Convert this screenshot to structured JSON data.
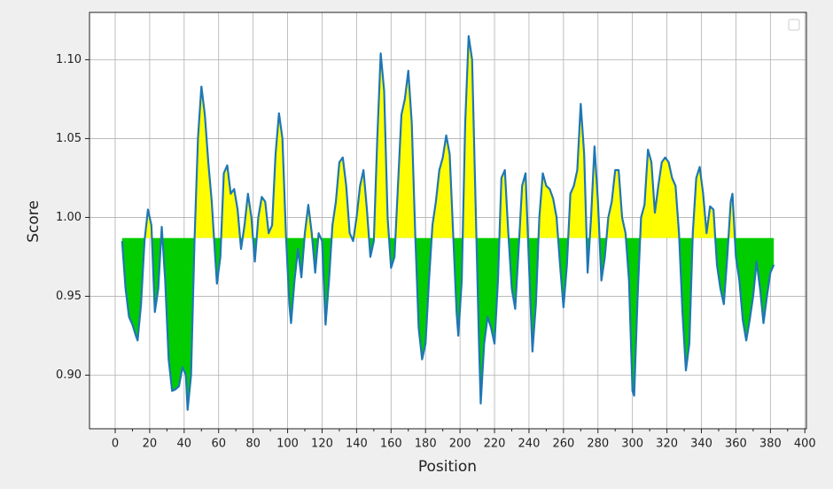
{
  "chart_data": {
    "type": "threshold-area",
    "xlabel": "Position",
    "ylabel": "Score",
    "x": [
      4,
      6,
      8,
      10,
      12,
      13,
      15,
      17,
      19,
      21,
      23,
      25,
      27,
      29,
      31,
      33,
      35,
      37,
      39,
      41,
      42,
      44,
      46,
      48,
      50,
      52,
      54,
      56,
      58,
      59,
      61,
      63,
      65,
      67,
      69,
      71,
      73,
      75,
      77,
      79,
      81,
      83,
      85,
      87,
      89,
      91,
      93,
      95,
      97,
      99,
      101,
      102,
      104,
      106,
      108,
      110,
      112,
      114,
      116,
      118,
      120,
      122,
      124,
      126,
      128,
      130,
      132,
      134,
      136,
      138,
      140,
      142,
      144,
      146,
      148,
      150,
      152,
      154,
      156,
      158,
      160,
      162,
      164,
      166,
      168,
      170,
      172,
      174,
      176,
      178,
      180,
      182,
      184,
      186,
      188,
      190,
      192,
      194,
      196,
      198,
      199,
      201,
      203,
      205,
      207,
      209,
      211,
      212,
      214,
      216,
      218,
      220,
      222,
      224,
      226,
      228,
      230,
      232,
      234,
      236,
      238,
      240,
      242,
      244,
      246,
      248,
      250,
      252,
      254,
      256,
      258,
      260,
      262,
      264,
      266,
      268,
      270,
      272,
      274,
      276,
      278,
      280,
      282,
      284,
      286,
      288,
      290,
      292,
      294,
      296,
      298,
      300,
      301,
      303,
      305,
      307,
      309,
      311,
      313,
      315,
      317,
      319,
      321,
      323,
      325,
      327,
      329,
      331,
      333,
      335,
      337,
      339,
      341,
      343,
      345,
      347,
      349,
      351,
      353,
      355,
      357,
      358,
      360,
      362,
      364,
      366,
      368,
      370,
      372,
      374,
      376,
      378,
      380,
      382
    ],
    "series": [
      {
        "color": "#1f77b4",
        "values": [
          0.985,
          0.955,
          0.937,
          0.932,
          0.925,
          0.922,
          0.945,
          0.985,
          1.005,
          0.995,
          0.94,
          0.955,
          0.994,
          0.96,
          0.91,
          0.89,
          0.891,
          0.893,
          0.905,
          0.9,
          0.878,
          0.9,
          0.985,
          1.05,
          1.083,
          1.065,
          1.035,
          1.01,
          0.975,
          0.958,
          0.975,
          1.028,
          1.033,
          1.015,
          1.018,
          1.005,
          0.98,
          0.995,
          1.015,
          1.0,
          0.972,
          1.0,
          1.013,
          1.01,
          0.99,
          0.995,
          1.04,
          1.066,
          1.05,
          0.99,
          0.945,
          0.933,
          0.96,
          0.98,
          0.962,
          0.99,
          1.008,
          0.99,
          0.965,
          0.99,
          0.985,
          0.932,
          0.96,
          0.995,
          1.01,
          1.035,
          1.038,
          1.02,
          0.99,
          0.985,
          1.0,
          1.02,
          1.03,
          1.005,
          0.975,
          0.985,
          1.05,
          1.104,
          1.08,
          1.0,
          0.968,
          0.975,
          1.02,
          1.065,
          1.075,
          1.093,
          1.06,
          0.99,
          0.93,
          0.91,
          0.92,
          0.96,
          0.995,
          1.01,
          1.03,
          1.038,
          1.052,
          1.04,
          0.99,
          0.94,
          0.925,
          0.96,
          1.06,
          1.115,
          1.1,
          1.01,
          0.92,
          0.882,
          0.92,
          0.937,
          0.93,
          0.92,
          0.96,
          1.025,
          1.03,
          0.99,
          0.955,
          0.942,
          0.98,
          1.02,
          1.028,
          0.97,
          0.915,
          0.945,
          1.0,
          1.028,
          1.02,
          1.018,
          1.012,
          1.0,
          0.97,
          0.943,
          0.97,
          1.015,
          1.02,
          1.03,
          1.072,
          1.04,
          0.965,
          1.0,
          1.045,
          1.01,
          0.96,
          0.975,
          1.0,
          1.01,
          1.03,
          1.03,
          1.0,
          0.99,
          0.96,
          0.89,
          0.887,
          0.95,
          1.0,
          1.008,
          1.043,
          1.035,
          1.003,
          1.02,
          1.035,
          1.038,
          1.035,
          1.025,
          1.02,
          0.99,
          0.94,
          0.903,
          0.92,
          0.99,
          1.025,
          1.032,
          1.015,
          0.99,
          1.007,
          1.005,
          0.97,
          0.955,
          0.945,
          0.975,
          1.01,
          1.015,
          0.975,
          0.96,
          0.935,
          0.922,
          0.935,
          0.95,
          0.972,
          0.955,
          0.933,
          0.95,
          0.965,
          0.97
        ]
      }
    ],
    "threshold": 0.987,
    "fill_colors": {
      "above": "#ffff00",
      "below": "#00cc00"
    },
    "xlim": [
      -14.9,
      400.9
    ],
    "xticks": [
      0,
      20,
      40,
      60,
      80,
      100,
      120,
      140,
      160,
      180,
      200,
      220,
      240,
      260,
      280,
      300,
      320,
      340,
      360,
      380,
      400
    ],
    "xminorticks": [
      10,
      30,
      50,
      70,
      90,
      110,
      130,
      150,
      170,
      190,
      210,
      230,
      250,
      270,
      290,
      310,
      330,
      350,
      370,
      390
    ],
    "ylim": [
      0.866,
      1.13
    ],
    "yticks": [
      {
        "value": 0.9,
        "label": "0.90"
      },
      {
        "value": 0.95,
        "label": "0.95"
      },
      {
        "value": 1.0,
        "label": "1.00"
      },
      {
        "value": 1.05,
        "label": "1.05"
      },
      {
        "value": 1.1,
        "label": "1.10"
      }
    ],
    "grid": true,
    "legend": "upper right"
  }
}
